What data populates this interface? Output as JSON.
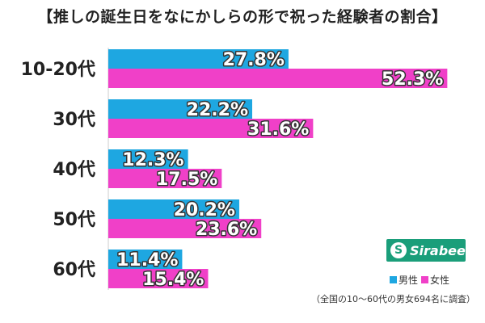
{
  "colors": {
    "male": "#1ea7e1",
    "female": "#f040c8"
  },
  "logo": {
    "text": "Sirabee",
    "mark": "S"
  },
  "footnote": "（全国の10〜60代の男女694名に調査）",
  "chart_data": {
    "type": "bar",
    "orientation": "horizontal",
    "title": "【推しの誕生日をなにかしらの形で祝った経験者の割合】",
    "categories": [
      "10-20代",
      "30代",
      "40代",
      "50代",
      "60代"
    ],
    "series": [
      {
        "name": "男性",
        "values": [
          27.8,
          22.2,
          12.3,
          20.2,
          11.4
        ]
      },
      {
        "name": "女性",
        "values": [
          52.3,
          31.6,
          17.5,
          23.6,
          15.4
        ]
      }
    ],
    "value_suffix": "%",
    "xlim": [
      0,
      55
    ],
    "grid": false,
    "legend_position": "bottom-right"
  }
}
